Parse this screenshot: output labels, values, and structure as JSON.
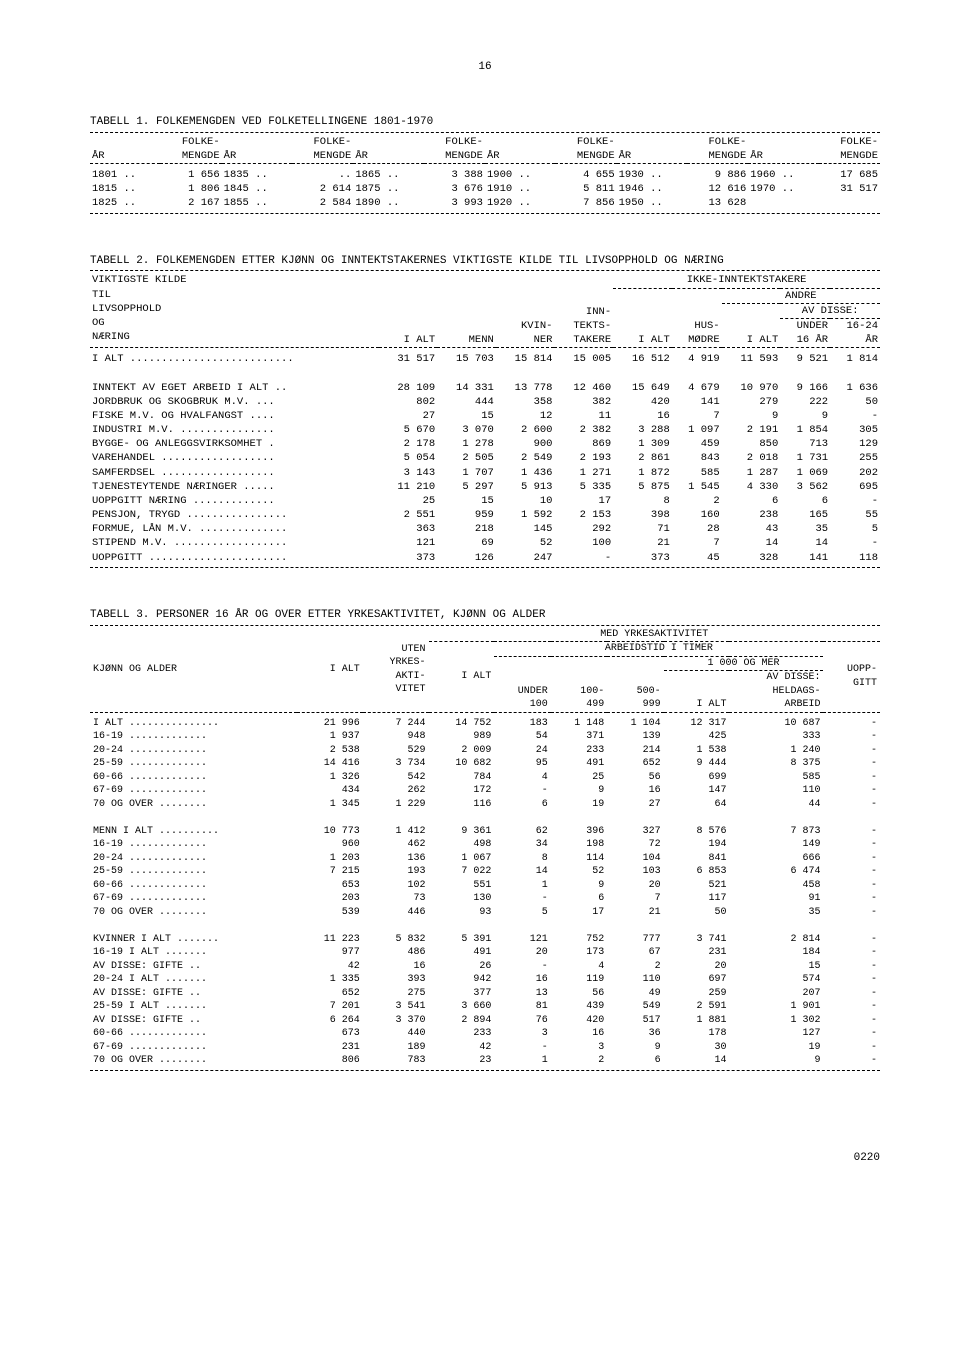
{
  "page_number": "16",
  "footer_id": "0220",
  "table1": {
    "title": "TABELL 1. FOLKEMENGDEN VED FOLKETELLINGENE 1801-1970",
    "col_head_year": "ÅR",
    "col_head_pop": "FOLKE-\nMENGDE",
    "rows": [
      {
        "y": "1801 ..",
        "p": "1 656",
        "y2": "1835 ..",
        "p2": "..",
        "y3": "1865 ..",
        "p3": "3 388",
        "y4": "1900 ..",
        "p4": "4 655",
        "y5": "1930 ..",
        "p5": "9 886",
        "y6": "1960 ..",
        "p6": "17 685"
      },
      {
        "y": "1815 ..",
        "p": "1 806",
        "y2": "1845 ..",
        "p2": "2 614",
        "y3": "1875 ..",
        "p3": "3 676",
        "y4": "1910 ..",
        "p4": "5 811",
        "y5": "1946 ..",
        "p5": "12 616",
        "y6": "1970 ..",
        "p6": "31 517"
      },
      {
        "y": "1825 ..",
        "p": "2 167",
        "y2": "1855 ..",
        "p2": "2 584",
        "y3": "1890 ..",
        "p3": "3 993",
        "y4": "1920 ..",
        "p4": "7 856",
        "y5": "1950 ..",
        "p5": "13 628",
        "y6": "",
        "p6": ""
      }
    ]
  },
  "table2": {
    "title": "TABELL 2. FOLKEMENGDEN ETTER KJØNN OG INNTEKTSTAKERNES VIKTIGSTE KILDE TIL LIVSOPPHOLD OG NÆRING",
    "h_ikke": "IKKE-INNTEKTSTAKERE",
    "h_andre": "ANDRE",
    "h_avdisse": "AV DISSE:",
    "h_kilde": "VIKTIGSTE KILDE\nTIL\nLIVSOPPHOLD\nOG\nNÆRING",
    "h_ialt": "I ALT",
    "h_menn": "MENN",
    "h_kvin": "KVIN-\nNER",
    "h_inn": "INN-\nTEKTS-\nTAKERE",
    "h_hus": "HUS-\nMØDRE",
    "h_under": "UNDER\n16 ÅR",
    "h_1624": "16-24\nÅR",
    "rows": [
      {
        "l": "I ALT ..........................",
        "c": [
          "31 517",
          "15 703",
          "15 814",
          "15 005",
          "16 512",
          "4 919",
          "11 593",
          "9 521",
          "1 814"
        ]
      },
      {
        "l": "",
        "c": []
      },
      {
        "l": "INNTEKT AV EGET ARBEID I ALT ..",
        "c": [
          "28 109",
          "14 331",
          "13 778",
          "12 460",
          "15 649",
          "4 679",
          "10 970",
          "9 166",
          "1 636"
        ]
      },
      {
        "l": "  JORDBRUK OG SKOGBRUK M.V. ...",
        "c": [
          "802",
          "444",
          "358",
          "382",
          "420",
          "141",
          "279",
          "222",
          "50"
        ]
      },
      {
        "l": "  FISKE M.V. OG HVALFANGST ....",
        "c": [
          "27",
          "15",
          "12",
          "11",
          "16",
          "7",
          "9",
          "9",
          "-"
        ]
      },
      {
        "l": "  INDUSTRI M.V. ...............",
        "c": [
          "5 670",
          "3 070",
          "2 600",
          "2 382",
          "3 288",
          "1 097",
          "2 191",
          "1 854",
          "305"
        ]
      },
      {
        "l": "  BYGGE- OG ANLEGGSVIRKSOMHET .",
        "c": [
          "2 178",
          "1 278",
          "900",
          "869",
          "1 309",
          "459",
          "850",
          "713",
          "129"
        ]
      },
      {
        "l": "  VAREHANDEL ..................",
        "c": [
          "5 054",
          "2 505",
          "2 549",
          "2 193",
          "2 861",
          "843",
          "2 018",
          "1 731",
          "255"
        ]
      },
      {
        "l": "  SAMFERDSEL ..................",
        "c": [
          "3 143",
          "1 707",
          "1 436",
          "1 271",
          "1 872",
          "585",
          "1 287",
          "1 069",
          "202"
        ]
      },
      {
        "l": "  TJENESTEYTENDE NÆRINGER .....",
        "c": [
          "11 210",
          "5 297",
          "5 913",
          "5 335",
          "5 875",
          "1 545",
          "4 330",
          "3 562",
          "695"
        ]
      },
      {
        "l": "  UOPPGITT NÆRING .............",
        "c": [
          "25",
          "15",
          "10",
          "17",
          "8",
          "2",
          "6",
          "6",
          "-"
        ]
      },
      {
        "l": "PENSJON, TRYGD ................",
        "c": [
          "2 551",
          "959",
          "1 592",
          "2 153",
          "398",
          "160",
          "238",
          "165",
          "55"
        ]
      },
      {
        "l": "FORMUE, LÅN M.V. ..............",
        "c": [
          "363",
          "218",
          "145",
          "292",
          "71",
          "28",
          "43",
          "35",
          "5"
        ]
      },
      {
        "l": "STIPEND M.V. ..................",
        "c": [
          "121",
          "69",
          "52",
          "100",
          "21",
          "7",
          "14",
          "14",
          "-"
        ]
      },
      {
        "l": "UOPPGITT ......................",
        "c": [
          "373",
          "126",
          "247",
          "-",
          "373",
          "45",
          "328",
          "141",
          "118"
        ]
      }
    ]
  },
  "table3": {
    "title": "TABELL 3. PERSONER 16 ÅR OG OVER ETTER YRKESAKTIVITET, KJØNN OG ALDER",
    "h_med": "MED YRKESAKTIVITET",
    "h_arb": "ARBEIDSTID I TIMER",
    "h_1000": "1 000 OG MER",
    "h_kjonn": "KJØNN OG ALDER",
    "h_ialt": "I ALT",
    "h_uten": "UTEN\nYRKES-\nAKTI-\nVITET",
    "h_under": "UNDER\n100",
    "h_100": "100-\n499",
    "h_500": "500-\n999",
    "h_avdisse": "AV DISSE:\nHELDAGS-\nARBEID",
    "h_uopp": "UOPP-\nGITT",
    "rows": [
      {
        "l": "I ALT ...............",
        "c": [
          "21 996",
          "7 244",
          "14 752",
          "183",
          "1 148",
          "1 104",
          "12 317",
          "10 687",
          "-"
        ]
      },
      {
        "l": "  16-19 .............",
        "c": [
          "1 937",
          "948",
          "989",
          "54",
          "371",
          "139",
          "425",
          "333",
          "-"
        ]
      },
      {
        "l": "  20-24 .............",
        "c": [
          "2 538",
          "529",
          "2 009",
          "24",
          "233",
          "214",
          "1 538",
          "1 240",
          "-"
        ]
      },
      {
        "l": "  25-59 .............",
        "c": [
          "14 416",
          "3 734",
          "10 682",
          "95",
          "491",
          "652",
          "9 444",
          "8 375",
          "-"
        ]
      },
      {
        "l": "  60-66 .............",
        "c": [
          "1 326",
          "542",
          "784",
          "4",
          "25",
          "56",
          "699",
          "585",
          "-"
        ]
      },
      {
        "l": "  67-69 .............",
        "c": [
          "434",
          "262",
          "172",
          "-",
          "9",
          "16",
          "147",
          "110",
          "-"
        ]
      },
      {
        "l": "  70 OG OVER ........",
        "c": [
          "1 345",
          "1 229",
          "116",
          "6",
          "19",
          "27",
          "64",
          "44",
          "-"
        ]
      },
      {
        "l": "",
        "c": []
      },
      {
        "l": "MENN I ALT ..........",
        "c": [
          "10 773",
          "1 412",
          "9 361",
          "62",
          "396",
          "327",
          "8 576",
          "7 873",
          "-"
        ]
      },
      {
        "l": "  16-19 .............",
        "c": [
          "960",
          "462",
          "498",
          "34",
          "198",
          "72",
          "194",
          "149",
          "-"
        ]
      },
      {
        "l": "  20-24 .............",
        "c": [
          "1 203",
          "136",
          "1 067",
          "8",
          "114",
          "104",
          "841",
          "666",
          "-"
        ]
      },
      {
        "l": "  25-59 .............",
        "c": [
          "7 215",
          "193",
          "7 022",
          "14",
          "52",
          "103",
          "6 853",
          "6 474",
          "-"
        ]
      },
      {
        "l": "  60-66 .............",
        "c": [
          "653",
          "102",
          "551",
          "1",
          "9",
          "20",
          "521",
          "458",
          "-"
        ]
      },
      {
        "l": "  67-69 .............",
        "c": [
          "203",
          "73",
          "130",
          "-",
          "6",
          "7",
          "117",
          "91",
          "-"
        ]
      },
      {
        "l": "  70 OG OVER ........",
        "c": [
          "539",
          "446",
          "93",
          "5",
          "17",
          "21",
          "50",
          "35",
          "-"
        ]
      },
      {
        "l": "",
        "c": []
      },
      {
        "l": "KVINNER I ALT .......",
        "c": [
          "11 223",
          "5 832",
          "5 391",
          "121",
          "752",
          "777",
          "3 741",
          "2 814",
          "-"
        ]
      },
      {
        "l": "  16-19 I ALT .......",
        "c": [
          "977",
          "486",
          "491",
          "20",
          "173",
          "67",
          "231",
          "184",
          "-"
        ]
      },
      {
        "l": "   AV DISSE: GIFTE ..",
        "c": [
          "42",
          "16",
          "26",
          "-",
          "4",
          "2",
          "20",
          "15",
          "-"
        ]
      },
      {
        "l": "  20-24 I ALT .......",
        "c": [
          "1 335",
          "393",
          "942",
          "16",
          "119",
          "110",
          "697",
          "574",
          "-"
        ]
      },
      {
        "l": "   AV DISSE: GIFTE ..",
        "c": [
          "652",
          "275",
          "377",
          "13",
          "56",
          "49",
          "259",
          "207",
          "-"
        ]
      },
      {
        "l": "  25-59 I ALT .......",
        "c": [
          "7 201",
          "3 541",
          "3 660",
          "81",
          "439",
          "549",
          "2 591",
          "1 901",
          "-"
        ]
      },
      {
        "l": "   AV DISSE: GIFTE ..",
        "c": [
          "6 264",
          "3 370",
          "2 894",
          "76",
          "420",
          "517",
          "1 881",
          "1 302",
          "-"
        ]
      },
      {
        "l": "  60-66 .............",
        "c": [
          "673",
          "440",
          "233",
          "3",
          "16",
          "36",
          "178",
          "127",
          "-"
        ]
      },
      {
        "l": "  67-69 .............",
        "c": [
          "231",
          "189",
          "42",
          "-",
          "3",
          "9",
          "30",
          "19",
          "-"
        ]
      },
      {
        "l": "  70 OG OVER ........",
        "c": [
          "806",
          "783",
          "23",
          "1",
          "2",
          "6",
          "14",
          "9",
          "-"
        ]
      }
    ]
  }
}
